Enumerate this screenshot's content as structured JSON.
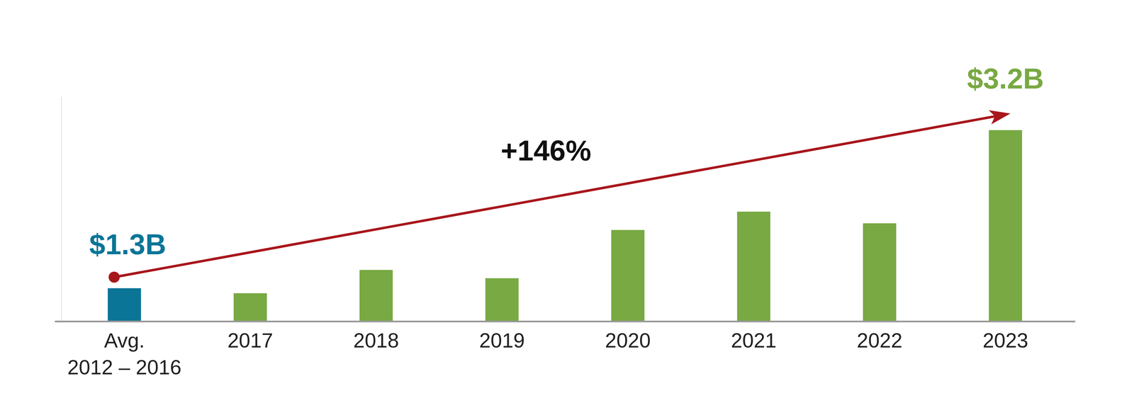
{
  "chart_data": {
    "type": "bar",
    "categories": [
      "Avg.\n2012 – 2016",
      "2017",
      "2018",
      "2019",
      "2020",
      "2021",
      "2022",
      "2023"
    ],
    "values": [
      1.3,
      1.24,
      1.52,
      1.42,
      2.0,
      2.22,
      2.08,
      3.2
    ],
    "value_labels": [
      "$1.3B",
      null,
      null,
      null,
      null,
      null,
      null,
      "$3.2B"
    ],
    "colors": [
      "#0b7597",
      "#78a942",
      "#78a942",
      "#78a942",
      "#78a942",
      "#78a942",
      "#78a942",
      "#78a942"
    ],
    "ylim": [
      0.9,
      3.6
    ],
    "yticks": [],
    "tick_labels": "x",
    "grid": false,
    "data_labels": true,
    "annotations": [
      {
        "text": "+146%",
        "color": "#a8161b"
      }
    ]
  }
}
